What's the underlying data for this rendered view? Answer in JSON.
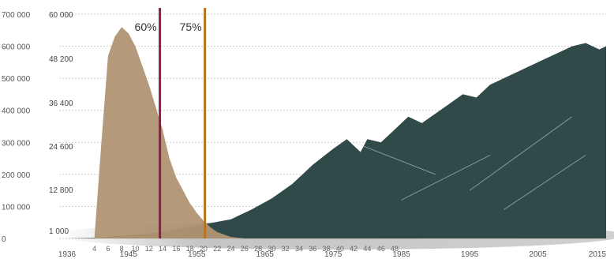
{
  "chart_data": {
    "type": "area",
    "title": "",
    "xlabel": "",
    "ylabel": "",
    "xlim": [
      1936,
      2015
    ],
    "grid": true,
    "left_axis": {
      "ticks": [
        0,
        100000,
        200000,
        300000,
        400000,
        500000,
        600000,
        700000
      ],
      "labels": [
        "0",
        "100 000",
        "200 000",
        "300 000",
        "400 000",
        "500 000",
        "600 000",
        "700 000"
      ]
    },
    "inner_axis": {
      "labels": [
        "1 000",
        "12 800",
        "24 600",
        "36 400",
        "48 200",
        "60 000"
      ]
    },
    "x_ticks": [
      1936,
      1945,
      1955,
      1965,
      1975,
      1985,
      1995,
      2005,
      2015
    ],
    "x_labels": [
      "1936",
      "1945",
      "1955",
      "1965",
      "1975",
      "1985",
      "1995",
      "2005",
      "2015"
    ],
    "sub_ticks": [
      {
        "x": 1940,
        "label": "4"
      },
      {
        "x": 1942,
        "label": "6"
      },
      {
        "x": 1944,
        "label": "8"
      },
      {
        "x": 1946,
        "label": "10"
      },
      {
        "x": 1948,
        "label": "12"
      },
      {
        "x": 1950,
        "label": "14"
      },
      {
        "x": 1952,
        "label": "16"
      },
      {
        "x": 1954,
        "label": "18"
      },
      {
        "x": 1956,
        "label": "20"
      },
      {
        "x": 1958,
        "label": "22"
      },
      {
        "x": 1960,
        "label": "24"
      },
      {
        "x": 1962,
        "label": "26"
      },
      {
        "x": 1964,
        "label": "28"
      },
      {
        "x": 1966,
        "label": "30"
      },
      {
        "x": 1968,
        "label": "32"
      },
      {
        "x": 1970,
        "label": "34"
      },
      {
        "x": 1972,
        "label": "36"
      },
      {
        "x": 1974,
        "label": "38"
      },
      {
        "x": 1976,
        "label": "40"
      },
      {
        "x": 1978,
        "label": "42"
      },
      {
        "x": 1980,
        "label": "44"
      },
      {
        "x": 1982,
        "label": "46"
      },
      {
        "x": 1984,
        "label": "48"
      }
    ],
    "series": [
      {
        "color": "#2f4a48",
        "x": [
          1936,
          1940,
          1945,
          1950,
          1955,
          1960,
          1963,
          1966,
          1969,
          1972,
          1975,
          1977,
          1979,
          1980,
          1982,
          1984,
          1986,
          1988,
          1990,
          1992,
          1994,
          1996,
          1998,
          2000,
          2002,
          2004,
          2006,
          2008,
          2010,
          2012,
          2014,
          2015
        ],
        "y": [
          0,
          2000,
          10000,
          20000,
          40000,
          60000,
          90000,
          125000,
          170000,
          230000,
          280000,
          310000,
          270000,
          310000,
          300000,
          340000,
          380000,
          360000,
          390000,
          420000,
          450000,
          440000,
          480000,
          500000,
          520000,
          540000,
          560000,
          580000,
          600000,
          610000,
          590000,
          600000
        ]
      },
      {
        "color": "#b09474",
        "x": [
          1940,
          1941,
          1942,
          1943,
          1944,
          1945,
          1946,
          1947,
          1948,
          1949,
          1950,
          1951,
          1952,
          1953,
          1954,
          1955,
          1956,
          1957,
          1958,
          1960,
          1962
        ],
        "y": [
          0,
          290000,
          570000,
          630000,
          660000,
          640000,
          600000,
          540000,
          480000,
          410000,
          340000,
          250000,
          190000,
          150000,
          110000,
          80000,
          55000,
          35000,
          20000,
          5000,
          0
        ]
      }
    ],
    "markers": [
      {
        "x": 1949.6,
        "label": "60%",
        "color": "#8e1f4e"
      },
      {
        "x": 1956.2,
        "label": "75%",
        "color": "#b8741a"
      }
    ]
  }
}
